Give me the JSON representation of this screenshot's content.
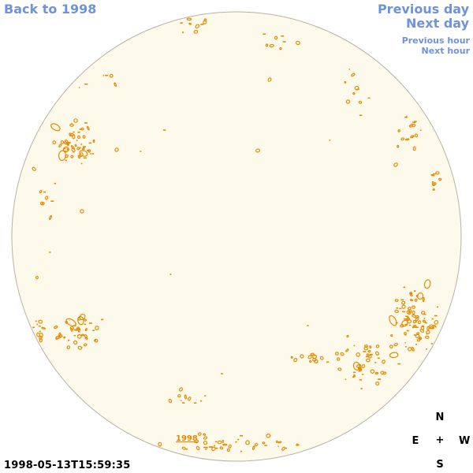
{
  "nav": {
    "back_label": "Back to 1998",
    "prev_day_label": "Previous day",
    "next_day_label": "Next day",
    "prev_hour_label": "Previous hour",
    "next_hour_label": "Next hour"
  },
  "year_link_label": "1998",
  "timestamp": "1998-05-13T15:59:35",
  "compass": {
    "north": "N",
    "east": "E",
    "center": "+",
    "west": "W",
    "south": "S"
  },
  "colors": {
    "link": "#6f93d8",
    "disk_fill": "#fefaeb",
    "disk_stroke": "#b9b2a4",
    "feature": "#e68a00"
  }
}
